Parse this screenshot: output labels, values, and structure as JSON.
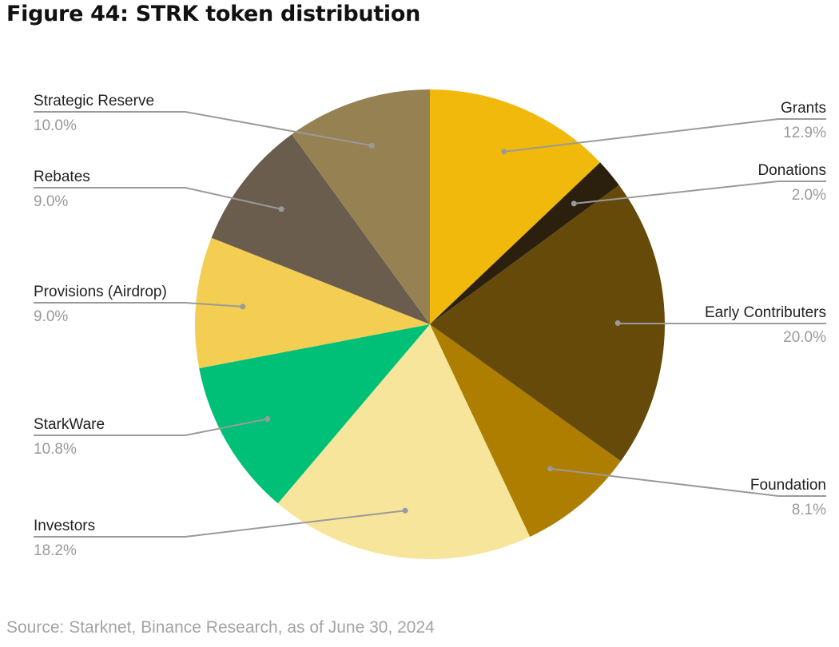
{
  "title": "Figure 44: STRK token distribution",
  "source": "Source: Starknet, Binance Research, as of June 30, 2024",
  "chart_data": {
    "type": "pie",
    "title": "Figure 44: STRK token distribution",
    "start_angle_deg": 0,
    "direction": "clockwise",
    "slices": [
      {
        "name": "Grants",
        "value": 12.9,
        "label": "12.9%",
        "color": "#F0B90B",
        "side": "right"
      },
      {
        "name": "Donations",
        "value": 2.0,
        "label": "2.0%",
        "color": "#2B1F0D",
        "side": "right"
      },
      {
        "name": "Early Contributers",
        "value": 20.0,
        "label": "20.0%",
        "color": "#664A09",
        "side": "right"
      },
      {
        "name": "Foundation",
        "value": 8.1,
        "label": "8.1%",
        "color": "#AE7E00",
        "side": "right"
      },
      {
        "name": "Investors",
        "value": 18.2,
        "label": "18.2%",
        "color": "#F8E59C",
        "side": "left"
      },
      {
        "name": "StarkWare",
        "value": 10.8,
        "label": "10.8%",
        "color": "#00BF76",
        "side": "left"
      },
      {
        "name": "Provisions (Airdrop)",
        "value": 9.0,
        "label": "9.0%",
        "color": "#F4CE52",
        "side": "left"
      },
      {
        "name": "Rebates",
        "value": 9.0,
        "label": "9.0%",
        "color": "#6A5D4D",
        "side": "left"
      },
      {
        "name": "Strategic Reserve",
        "value": 10.0,
        "label": "10.0%",
        "color": "#968153",
        "side": "left"
      }
    ]
  }
}
